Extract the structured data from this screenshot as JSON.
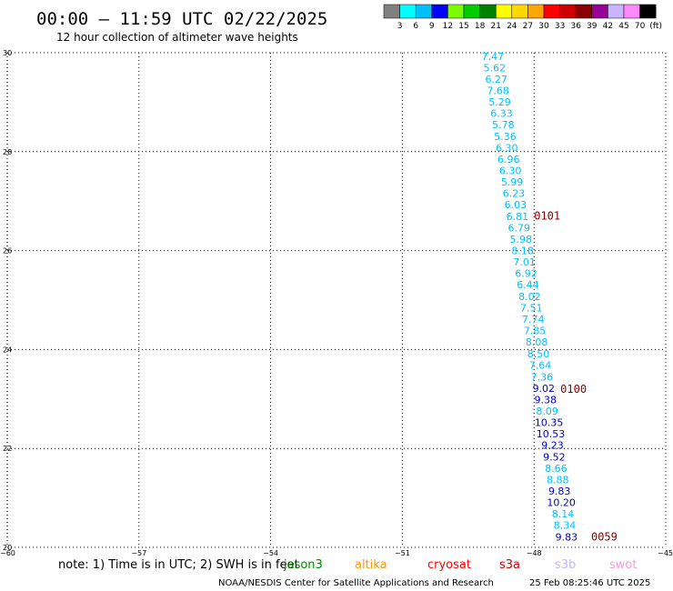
{
  "header": {
    "title": "00:00 – 11:59 UTC 02/22/2025",
    "subtitle": "12 hour collection of altimeter wave heights"
  },
  "colorbar": {
    "labels": [
      "3",
      "6",
      "9",
      "12",
      "15",
      "18",
      "21",
      "24",
      "27",
      "30",
      "33",
      "36",
      "39",
      "42",
      "45",
      "70",
      "(ft)"
    ],
    "colors": [
      "#808080",
      "#00ffff",
      "#00bfff",
      "#0000ff",
      "#7cfc00",
      "#00cc00",
      "#008000",
      "#ffff00",
      "#ffd700",
      "#ffa500",
      "#ff0000",
      "#cc0000",
      "#8b0000",
      "#990099",
      "#c8b4ff",
      "#ff88ff",
      "#000000"
    ]
  },
  "chart_data": {
    "type": "scatter",
    "title": "00:00 – 11:59 UTC 02/22/2025",
    "subtitle": "12 hour collection of altimeter wave heights",
    "xlim": [
      -60,
      -45
    ],
    "ylim": [
      20,
      30
    ],
    "x_ticks": [
      -60,
      -57,
      -54,
      -51,
      -48,
      -45
    ],
    "y_ticks": [
      20,
      22,
      24,
      26,
      28,
      30
    ],
    "x_tick_labels": [
      "−60",
      "−57",
      "−54",
      "−51",
      "−48",
      "−45"
    ],
    "y_tick_labels": [
      "20",
      "22",
      "24",
      "26",
      "28",
      "30"
    ],
    "grid": true,
    "points": [
      {
        "lon": -48.94,
        "lat": 29.93,
        "v": "7.47",
        "c": "#00bfff"
      },
      {
        "lon": -48.9,
        "lat": 29.7,
        "v": "5.62",
        "c": "#00bfff"
      },
      {
        "lon": -48.86,
        "lat": 29.47,
        "v": "6.27",
        "c": "#00bfff"
      },
      {
        "lon": -48.82,
        "lat": 29.24,
        "v": "7.68",
        "c": "#00bfff"
      },
      {
        "lon": -48.78,
        "lat": 29.01,
        "v": "5.29",
        "c": "#00bfff"
      },
      {
        "lon": -48.74,
        "lat": 28.78,
        "v": "6.33",
        "c": "#00bfff"
      },
      {
        "lon": -48.7,
        "lat": 28.55,
        "v": "5.78",
        "c": "#00bfff"
      },
      {
        "lon": -48.66,
        "lat": 28.31,
        "v": "5.36",
        "c": "#00bfff"
      },
      {
        "lon": -48.62,
        "lat": 28.08,
        "v": "6.30",
        "c": "#00bfff"
      },
      {
        "lon": -48.58,
        "lat": 27.85,
        "v": "6.96",
        "c": "#00bfff"
      },
      {
        "lon": -48.54,
        "lat": 27.62,
        "v": "6.30",
        "c": "#00bfff"
      },
      {
        "lon": -48.5,
        "lat": 27.39,
        "v": "5.99",
        "c": "#00bfff"
      },
      {
        "lon": -48.46,
        "lat": 27.16,
        "v": "6.23",
        "c": "#00bfff"
      },
      {
        "lon": -48.42,
        "lat": 26.93,
        "v": "6.03",
        "c": "#00bfff"
      },
      {
        "lon": -48.38,
        "lat": 26.69,
        "v": "6.81",
        "c": "#00bfff"
      },
      {
        "lon": -48.34,
        "lat": 26.46,
        "v": "6.79",
        "c": "#00bfff"
      },
      {
        "lon": -48.3,
        "lat": 26.23,
        "v": "5.98",
        "c": "#00bfff"
      },
      {
        "lon": -48.26,
        "lat": 26.0,
        "v": "8.18",
        "c": "#00bfff"
      },
      {
        "lon": -48.22,
        "lat": 25.77,
        "v": "7.01",
        "c": "#00bfff"
      },
      {
        "lon": -48.18,
        "lat": 25.54,
        "v": "6.92",
        "c": "#00bfff"
      },
      {
        "lon": -48.14,
        "lat": 25.31,
        "v": "6.44",
        "c": "#00bfff"
      },
      {
        "lon": -48.1,
        "lat": 25.07,
        "v": "8.02",
        "c": "#00bfff"
      },
      {
        "lon": -48.06,
        "lat": 24.84,
        "v": "7.51",
        "c": "#00bfff"
      },
      {
        "lon": -48.02,
        "lat": 24.61,
        "v": "7.74",
        "c": "#00bfff"
      },
      {
        "lon": -47.98,
        "lat": 24.38,
        "v": "7.85",
        "c": "#00bfff"
      },
      {
        "lon": -47.94,
        "lat": 24.15,
        "v": "8.08",
        "c": "#00bfff"
      },
      {
        "lon": -47.9,
        "lat": 23.92,
        "v": "8.50",
        "c": "#00bfff"
      },
      {
        "lon": -47.86,
        "lat": 23.69,
        "v": "7.64",
        "c": "#00bfff"
      },
      {
        "lon": -47.82,
        "lat": 23.45,
        "v": "7.36",
        "c": "#00bfff"
      },
      {
        "lon": -47.78,
        "lat": 23.22,
        "v": "9.02",
        "c": "#0000cc"
      },
      {
        "lon": -47.74,
        "lat": 22.99,
        "v": "9.38",
        "c": "#0000cc"
      },
      {
        "lon": -47.7,
        "lat": 22.76,
        "v": "8.09",
        "c": "#00bfff"
      },
      {
        "lon": -47.66,
        "lat": 22.53,
        "v": "10.35",
        "c": "#0000cc"
      },
      {
        "lon": -47.62,
        "lat": 22.3,
        "v": "10.53",
        "c": "#0000cc"
      },
      {
        "lon": -47.58,
        "lat": 22.07,
        "v": "9.23",
        "c": "#0000cc"
      },
      {
        "lon": -47.54,
        "lat": 21.83,
        "v": "9.52",
        "c": "#0000cc"
      },
      {
        "lon": -47.5,
        "lat": 21.6,
        "v": "8.66",
        "c": "#00bfff"
      },
      {
        "lon": -47.46,
        "lat": 21.37,
        "v": "8.88",
        "c": "#00bfff"
      },
      {
        "lon": -47.42,
        "lat": 21.14,
        "v": "9.83",
        "c": "#0000cc"
      },
      {
        "lon": -47.38,
        "lat": 20.91,
        "v": "10.20",
        "c": "#0000cc"
      },
      {
        "lon": -47.34,
        "lat": 20.68,
        "v": "8.14",
        "c": "#00bfff"
      },
      {
        "lon": -47.3,
        "lat": 20.45,
        "v": "8.34",
        "c": "#00bfff"
      },
      {
        "lon": -47.26,
        "lat": 20.21,
        "v": "9.83",
        "c": "#0000cc"
      }
    ],
    "time_labels": [
      {
        "lon": -47.7,
        "lat": 26.7,
        "text": "0101"
      },
      {
        "lon": -47.1,
        "lat": 23.2,
        "text": "0100"
      },
      {
        "lon": -46.4,
        "lat": 20.21,
        "text": "0059"
      }
    ]
  },
  "footer": {
    "note": "note: 1) Time is in UTC; 2) SWH is in feet",
    "satellites": [
      {
        "name": "jason3",
        "color": "#008800"
      },
      {
        "name": "altika",
        "color": "#ff9900"
      },
      {
        "name": "cryosat",
        "color": "#ff0000"
      },
      {
        "name": "s3a",
        "color": "#cc0000"
      },
      {
        "name": "s3b",
        "color": "#c8b4ff"
      },
      {
        "name": "swot",
        "color": "#ff99dd"
      }
    ],
    "credit": "NOAA/NESDIS Center for Satellite Applications and Research",
    "timestamp": "25 Feb 08:25:46 UTC 2025"
  }
}
